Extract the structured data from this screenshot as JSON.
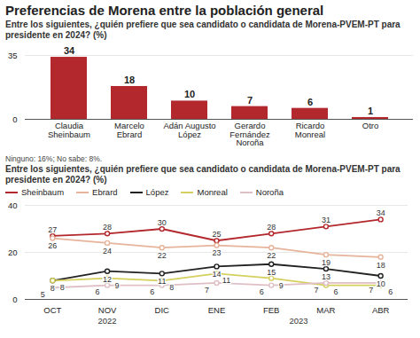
{
  "title": "Preferencias de Morena entre la población general",
  "chart_data": [
    {
      "type": "bar",
      "subtitle": "Entre los siguientes, ¿quién prefiere que sea candidato o candidata de Morena-PVEM-PT para presidente en 2024? (%)",
      "categories": [
        "Claudia Sheinbaum",
        "Marcelo Ebrard",
        "Adán Augusto López",
        "Gerardo Fernández Noroña",
        "Ricardo Monreal",
        "Otro"
      ],
      "values": [
        34,
        18,
        10,
        7,
        6,
        1
      ],
      "color": "#b3282d",
      "ylim": [
        0,
        35
      ],
      "yticks": [
        0,
        35
      ],
      "grid": true,
      "data_labels": true,
      "annotation": "Ninguno: 16%; No sabe: 8%."
    },
    {
      "type": "line",
      "subtitle": "Entre los siguientes, ¿quién prefiere que sea candidato o candidata de Morena-PVEM-PT para presidente en 2024? (%)",
      "categories": [
        "OCT",
        "NOV",
        "DIC",
        "ENE",
        "FEB",
        "MAR",
        "ABR"
      ],
      "groups": [
        {
          "label": "2022",
          "from": "OCT",
          "to": "DIC"
        },
        {
          "label": "2023",
          "from": "ENE",
          "to": "ABR"
        }
      ],
      "series": [
        {
          "name": "Sheinbaum",
          "color": "#b3282d",
          "values": [
            27,
            28,
            30,
            25,
            28,
            31,
            34
          ]
        },
        {
          "name": "Ebrard",
          "color": "#e6b39b",
          "values": [
            26,
            24,
            22,
            23,
            22,
            19,
            18
          ]
        },
        {
          "name": "López",
          "color": "#222222",
          "values": [
            8,
            12,
            11,
            14,
            15,
            13,
            10
          ]
        },
        {
          "name": "Monreal",
          "color": "#d4cf5e",
          "values": [
            8,
            9,
            8,
            11,
            9,
            6,
            6
          ]
        },
        {
          "name": "Noroña",
          "color": "#dfbfc6",
          "values": [
            5,
            6,
            6,
            7,
            6,
            7,
            7
          ]
        }
      ],
      "ylim": [
        0,
        40
      ],
      "yticks": [
        0,
        20,
        40
      ],
      "grid": true,
      "legend": "top",
      "marker": "circle",
      "data_labels": true
    }
  ]
}
